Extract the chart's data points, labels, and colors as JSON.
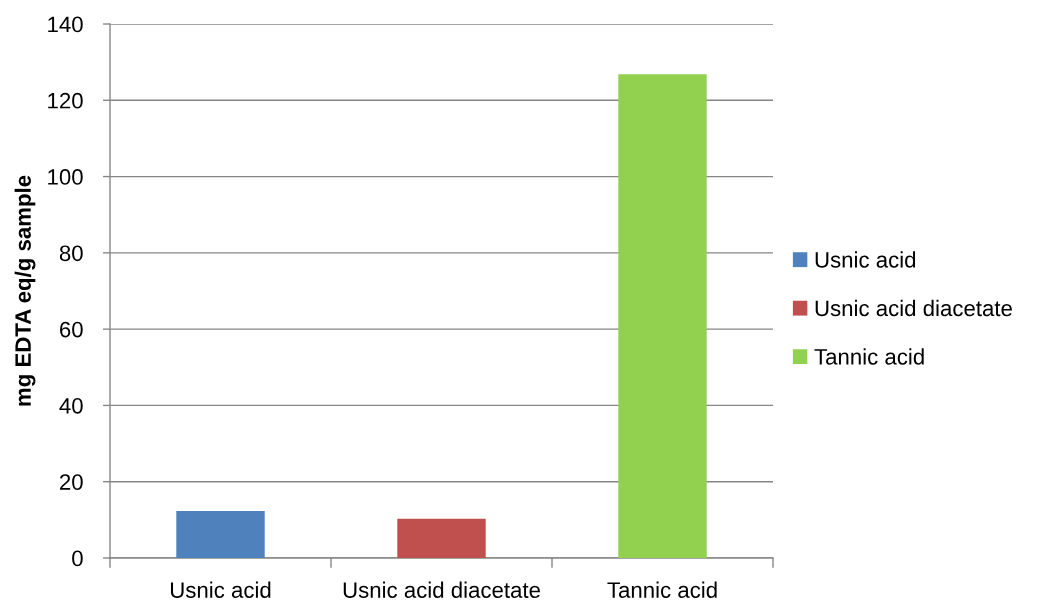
{
  "chart_data": {
    "type": "bar",
    "ylabel": "mg EDTA eq/g sample",
    "categories": [
      "Usnic acid",
      "Usnic acid diacetate",
      "Tannic acid"
    ],
    "series": [
      {
        "name": "Usnic acid",
        "color": "#4f81bd",
        "values": [
          12.3,
          null,
          null
        ]
      },
      {
        "name": "Usnic acid diacetate",
        "color": "#c0504d",
        "values": [
          null,
          10.3,
          null
        ]
      },
      {
        "name": "Tannic acid",
        "color": "#92d050",
        "values": [
          null,
          null,
          126.8
        ]
      }
    ],
    "ylim": [
      0,
      140
    ],
    "yticks": [
      0,
      20,
      40,
      60,
      80,
      100,
      120,
      140
    ],
    "grid": "y",
    "legend": "right"
  }
}
